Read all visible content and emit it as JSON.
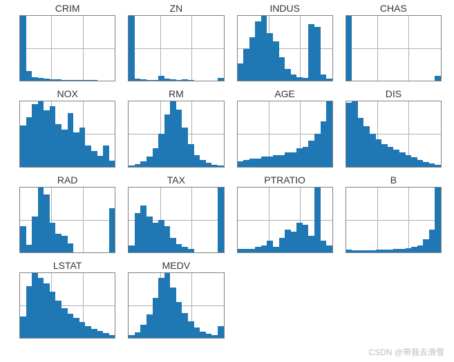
{
  "watermark": "CSDN @带我去滑雪",
  "chart_style": {
    "bar_color": "#1f77b4",
    "grid_color": "#b0b0b0",
    "border_color": "#808080",
    "background": "#ffffff",
    "title_fontsize": 14,
    "title_color": "#333333",
    "grid_vlines_pct": [
      33,
      66
    ],
    "grid_hlines_pct": [
      50
    ]
  },
  "panels": [
    {
      "title": "CRIM",
      "type": "histogram",
      "values": [
        100,
        15,
        6,
        4,
        3,
        2,
        2,
        1,
        1,
        1,
        1,
        1,
        1,
        0,
        0,
        0
      ]
    },
    {
      "title": "ZN",
      "type": "histogram",
      "values": [
        100,
        3,
        2,
        1,
        1,
        8,
        3,
        2,
        1,
        2,
        1,
        0,
        0,
        0,
        0,
        4
      ]
    },
    {
      "title": "INDUS",
      "type": "histogram",
      "values": [
        22,
        40,
        55,
        75,
        82,
        60,
        50,
        30,
        15,
        8,
        5,
        4,
        72,
        68,
        8,
        3
      ]
    },
    {
      "title": "CHAS",
      "type": "histogram",
      "values": [
        100,
        0,
        0,
        0,
        0,
        0,
        0,
        0,
        0,
        0,
        0,
        0,
        0,
        0,
        0,
        8
      ]
    },
    {
      "title": "NOX",
      "type": "histogram",
      "values": [
        58,
        70,
        88,
        92,
        80,
        85,
        60,
        52,
        76,
        48,
        55,
        30,
        22,
        15,
        30,
        8
      ]
    },
    {
      "title": "RM",
      "type": "histogram",
      "values": [
        2,
        4,
        8,
        15,
        28,
        50,
        80,
        100,
        88,
        60,
        35,
        18,
        10,
        6,
        3,
        2
      ]
    },
    {
      "title": "AGE",
      "type": "histogram",
      "values": [
        8,
        10,
        12,
        12,
        15,
        15,
        18,
        18,
        22,
        22,
        28,
        30,
        40,
        50,
        70,
        100
      ]
    },
    {
      "title": "DIS",
      "type": "histogram",
      "values": [
        98,
        100,
        75,
        62,
        50,
        42,
        35,
        30,
        26,
        22,
        18,
        14,
        10,
        7,
        5,
        3
      ]
    },
    {
      "title": "RAD",
      "type": "histogram",
      "values": [
        35,
        10,
        48,
        88,
        78,
        40,
        25,
        22,
        12,
        0,
        0,
        0,
        0,
        0,
        0,
        60
      ]
    },
    {
      "title": "TAX",
      "type": "histogram",
      "values": [
        10,
        60,
        72,
        55,
        45,
        50,
        40,
        22,
        12,
        8,
        5,
        0,
        0,
        0,
        0,
        100
      ]
    },
    {
      "title": "PTRATIO",
      "type": "histogram",
      "values": [
        5,
        5,
        5,
        8,
        10,
        18,
        8,
        22,
        35,
        32,
        45,
        42,
        25,
        100,
        18,
        10
      ]
    },
    {
      "title": "B",
      "type": "histogram",
      "values": [
        4,
        3,
        3,
        3,
        3,
        4,
        4,
        4,
        5,
        5,
        6,
        8,
        10,
        20,
        35,
        100
      ]
    },
    {
      "title": "LSTAT",
      "type": "histogram",
      "values": [
        32,
        78,
        98,
        90,
        82,
        70,
        56,
        45,
        36,
        30,
        24,
        18,
        14,
        10,
        7,
        4
      ]
    },
    {
      "title": "MEDV",
      "type": "histogram",
      "values": [
        4,
        8,
        20,
        36,
        62,
        92,
        100,
        78,
        55,
        38,
        25,
        16,
        10,
        6,
        4,
        18
      ]
    }
  ]
}
